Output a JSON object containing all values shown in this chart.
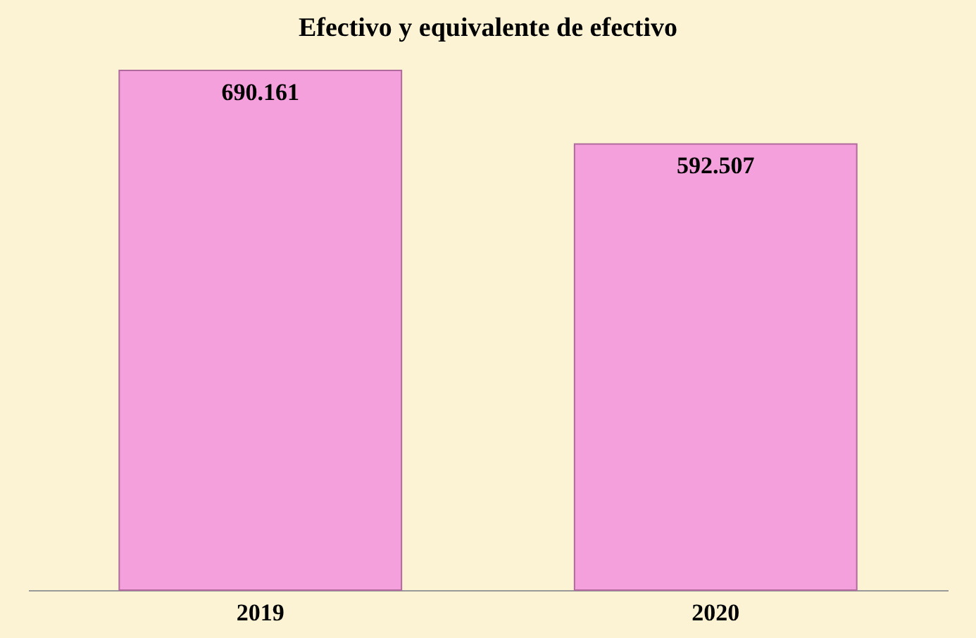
{
  "chart_data": {
    "type": "bar",
    "title": "Efectivo y equivalente de efectivo",
    "categories": [
      "2019",
      "2020"
    ],
    "values": [
      690.161,
      592.507
    ],
    "color": "#f4a0dc",
    "data_labels": true,
    "grid": false
  }
}
